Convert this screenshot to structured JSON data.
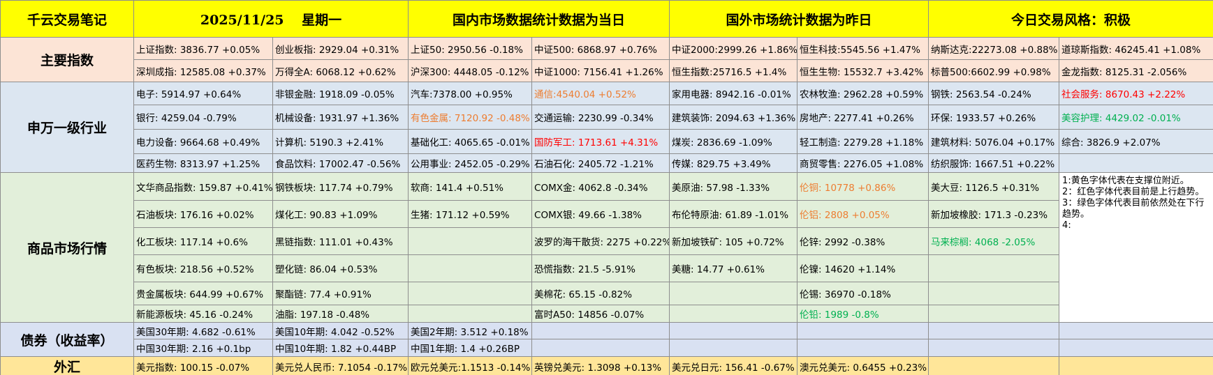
{
  "header": [
    "千云交易笔记",
    "2025/11/25　 星期一",
    "国内市场数据统计数据为当日",
    "国外市场统计数据为昨日",
    "今日交易风格：积极"
  ],
  "sections": [
    {
      "label": "主要指数",
      "rows": [
        [
          "上证指数: 3836.77 +0.05%",
          "创业板指: 2929.04 +0.31%",
          "上证50: 2950.56 -0.18%",
          "中证500: 6868.97 +0.76%",
          "中证2000:2999.26 +1.86%",
          "恒生科技:5545.56 +1.47%",
          "纳斯达克:22273.08 +0.88%",
          "道琼斯指数: 46245.41 +1.08%"
        ],
        [
          "深圳成指: 12585.08 +0.37%",
          "万得全A: 6068.12 +0.62%",
          "沪深300: 4448.05 -0.12%",
          "中证1000: 7156.41 +1.26%",
          "恒生指数:25716.5 +1.4%",
          "恒生生物: 15532.7 +3.42%",
          "标普500:6602.99 +0.98%",
          "金龙指数: 8125.31 -2.056%"
        ]
      ]
    },
    {
      "label": "申万一级行业",
      "rows": [
        [
          "电子: 5914.97 +0.64%",
          "非银金融: 1918.09 -0.05%",
          "汽车:7378.00 +0.95%",
          {
            "text": "通信:4540.04 +0.52%",
            "color": "#ed7d31"
          },
          "家用电器: 8942.16 -0.01%",
          "农林牧渔: 2962.28 +0.59%",
          "钢铁: 2563.54 -0.24%",
          {
            "text": "社会服务: 8670.43 +2.22%",
            "color": "#ff0000"
          }
        ],
        [
          "银行: 4259.04 -0.79%",
          "机械设备: 1931.97 +1.36%",
          {
            "text": "有色金属: 7120.92 -0.48%",
            "color": "#ed7d31"
          },
          "交通运输: 2230.99 -0.34%",
          "建筑装饰: 2094.63 +1.36%",
          "房地产: 2277.41 +0.26%",
          "环保: 1933.57 +0.26%",
          {
            "text": "美容护理: 4429.02 -0.01%",
            "color": "#00b050"
          }
        ],
        [
          "电力设备: 9664.68 +0.49%",
          "计算机: 5190.3 +2.41%",
          "基础化工: 4065.65 -0.01%",
          {
            "text": "国防军工: 1713.61 +4.31%",
            "color": "#ff0000"
          },
          "煤炭: 2836.69 -1.09%",
          "轻工制造: 2279.28 +1.18%",
          "建筑材料: 5076.04 +0.17%",
          "综合: 3826.9 +2.07%"
        ],
        [
          "医药生物: 8313.97 +1.25%",
          "食品饮料: 17002.47 -0.56%",
          "公用事业: 2452.05 -0.29%",
          "石油石化: 2405.72 -1.21%",
          "传媒: 829.75 +3.49%",
          "商贸零售: 2276.05 +1.08%",
          "纺织服饰: 1667.51 +0.22%",
          null
        ]
      ]
    },
    {
      "label": "商品市场行情",
      "note": [
        "1:黄色字体代表在支撑位附近。",
        "2：红色字体代表目前是上行趋势。",
        "3：绿色字体代表目前依然处在下行趋势。",
        "4:"
      ],
      "rows": [
        [
          "文华商品指数: 159.87 +0.41%",
          "钢铁板块: 117.74 +0.79%",
          "软商: 141.4 +0.51%",
          "COMX金: 4062.8 -0.34%",
          "美原油: 57.98 -1.33%",
          {
            "text": "伦铜: 10778 +0.86%",
            "color": "#ed7d31"
          },
          "美大豆: 1126.5 +0.31%"
        ],
        [
          "石油板块: 176.16 +0.02%",
          "煤化工: 90.83 +1.09%",
          "生猪: 171.12 +0.59%",
          "COMX银: 49.66 -1.38%",
          "布伦特原油: 61.89 -1.01%",
          {
            "text": "伦铝: 2808 +0.05%",
            "color": "#ed7d31"
          },
          "新加坡橡胶: 171.3 -0.23%"
        ],
        [
          "化工板块: 117.14 +0.6%",
          "黑链指数: 111.01 +0.43%",
          null,
          "波罗的海干散货: 2275 +0.22%",
          "新加坡铁矿: 105 +0.72%",
          "伦锌: 2992 -0.38%",
          {
            "text": "马来棕榈: 4068 -2.05%",
            "color": "#00b050"
          }
        ],
        [
          "有色板块: 218.56 +0.52%",
          "塑化链: 86.04 +0.53%",
          null,
          "恐慌指数: 21.5 -5.91%",
          "美糖: 14.77 +0.61%",
          "伦镍: 14620 +1.14%",
          null
        ],
        [
          "贵金属板块: 644.99 +0.67%",
          "聚酯链: 77.4 +0.91%",
          null,
          "美棉花: 65.15 -0.82%",
          null,
          "伦锡: 36970 -0.18%",
          null
        ],
        [
          "新能源板块: 45.16 -0.24%",
          "油脂: 197.18 -0.48%",
          null,
          "富时A50: 14856 -0.07%",
          null,
          {
            "text": "伦铅: 1989 -0.8%",
            "color": "#00b050"
          },
          null
        ]
      ]
    },
    {
      "label": "债券（收益率）",
      "rows": [
        [
          "美国30年期: 4.682 -0.61%",
          "美国10年期: 4.042 -0.52%",
          "美国2年期: 3.512 +0.18%",
          null,
          null,
          null,
          null,
          null
        ],
        [
          "中国30年期: 2.16 +0.1bp",
          "中国10年期: 1.82 +0.44BP",
          "中国1年期: 1.4 +0.26BP",
          null,
          null,
          null,
          null,
          null
        ]
      ]
    },
    {
      "label": "外汇",
      "rows": [
        [
          "美元指数: 100.15 -0.07%",
          "美元兑人民币: 7.1054 -0.17%",
          "欧元兑美元:1.1513 -0.14%",
          "英镑兑美元: 1.3098 +0.13%",
          "美元兑日元: 156.41 -0.67%",
          "澳元兑美元: 0.6455 +0.23%",
          null,
          null
        ]
      ]
    }
  ]
}
